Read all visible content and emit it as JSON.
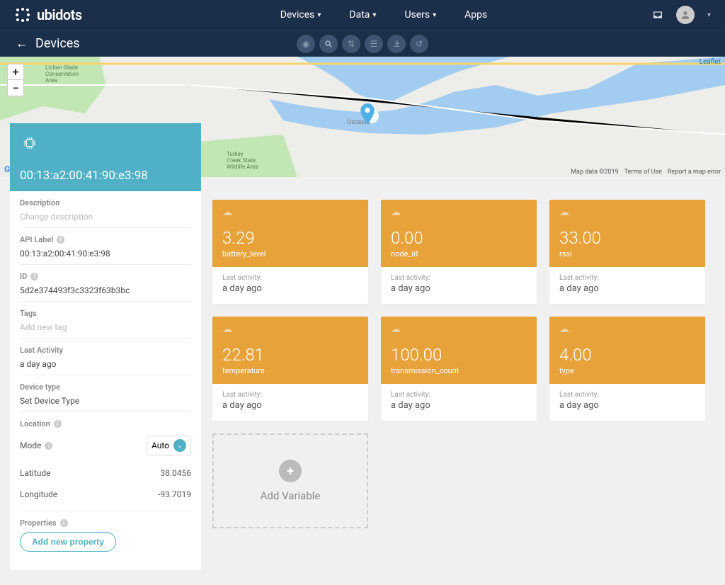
{
  "brand": "ubidots",
  "nav": {
    "devices": "Devices",
    "data": "Data",
    "users": "Users",
    "apps": "Apps"
  },
  "subbar": {
    "title": "Devices"
  },
  "map": {
    "zoom_in": "+",
    "zoom_out": "−",
    "leaflet": "Leaflet",
    "attr1": "Map data ©2019",
    "attr2": "Terms of Use",
    "attr3": "Report a map error",
    "label1": "Lichen Glade Conservation Area",
    "label2": "Turkey Creek State Wildlife Area",
    "label3": "Osceola"
  },
  "device": {
    "id_title": "00:13:a2:00:41:90:e3:98",
    "description_label": "Description",
    "description_placeholder": "Change description",
    "api_label_label": "API Label",
    "api_label_value": "00:13:a2:00:41:90:e3:98",
    "id_label": "ID",
    "id_value": "5d2e374493f3c3323f63b3bc",
    "tags_label": "Tags",
    "tags_placeholder": "Add new tag",
    "last_activity_label": "Last Activity",
    "last_activity_value": "a day ago",
    "device_type_label": "Device type",
    "device_type_value": "Set Device Type",
    "location_label": "Location",
    "mode_label": "Mode",
    "mode_value": "Auto",
    "latitude_label": "Latitude",
    "latitude_value": "38.0456",
    "longitude_label": "Longitude",
    "longitude_value": "-93.7019",
    "properties_label": "Properties",
    "add_property": "Add new property"
  },
  "vars": {
    "activity_label": "Last activity:",
    "time": "a day ago",
    "add_variable": "Add Variable",
    "accent_color": "#e8a23a",
    "items": [
      {
        "value": "3.29",
        "name": "battery_level"
      },
      {
        "value": "0.00",
        "name": "node_id"
      },
      {
        "value": "33.00",
        "name": "rssi"
      },
      {
        "value": "22.81",
        "name": "temperature"
      },
      {
        "value": "100.00",
        "name": "transmission_count"
      },
      {
        "value": "4.00",
        "name": "type"
      }
    ]
  }
}
